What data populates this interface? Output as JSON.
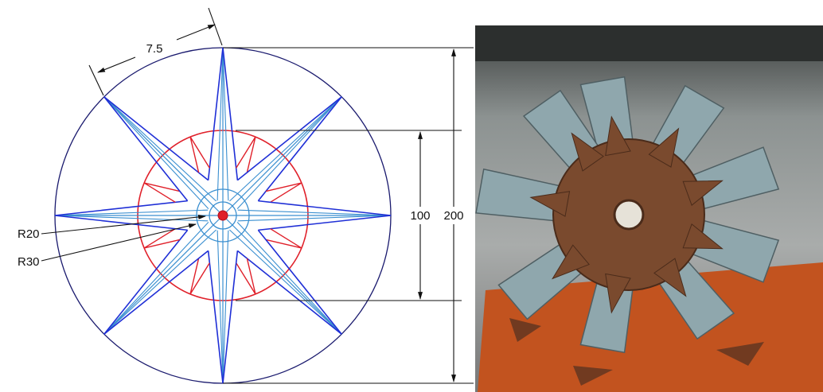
{
  "drawing": {
    "dimensions": {
      "blade_width": "7.5",
      "inner_diameter": "100",
      "outer_diameter": "200",
      "radius_small": "R20",
      "radius_large": "R30"
    }
  }
}
